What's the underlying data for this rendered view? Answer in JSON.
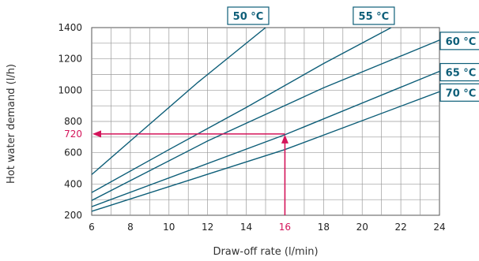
{
  "chart_data": {
    "type": "line",
    "title": "",
    "xlabel": "Draw-off rate (l/min)",
    "ylabel": "Hot water demand (l/h)",
    "xlim": [
      6,
      24
    ],
    "ylim": [
      200,
      1400
    ],
    "x_ticks": [
      "6",
      "8",
      "10",
      "12",
      "14",
      "16",
      "18",
      "20",
      "22",
      "24"
    ],
    "y_ticks": [
      "200",
      "400",
      "600",
      "800",
      "1000",
      "1200",
      "1400"
    ],
    "grid": true,
    "series": [
      {
        "name": "50 °C",
        "points": [
          [
            6,
            460
          ],
          [
            8.7,
            750
          ],
          [
            11.5,
            1050
          ],
          [
            15,
            1400
          ]
        ]
      },
      {
        "name": "55 °C",
        "points": [
          [
            6,
            345
          ],
          [
            10,
            620
          ],
          [
            14,
            890
          ],
          [
            18,
            1170
          ],
          [
            21.5,
            1400
          ]
        ]
      },
      {
        "name": "60 °C",
        "points": [
          [
            6,
            295
          ],
          [
            12,
            675
          ],
          [
            18,
            1015
          ],
          [
            24,
            1320
          ]
        ]
      },
      {
        "name": "65 °C",
        "points": [
          [
            6,
            255
          ],
          [
            16,
            715
          ],
          [
            24,
            1120
          ]
        ]
      },
      {
        "name": "70 °C",
        "points": [
          [
            6,
            225
          ],
          [
            16,
            620
          ],
          [
            24,
            990
          ]
        ]
      }
    ],
    "annotation": {
      "x_value": "16",
      "y_value": "720",
      "x": 16,
      "y": 720
    },
    "colors": {
      "series": "#0d5e78",
      "highlight": "#d4145a",
      "grid": "#9a9a9a",
      "axis": "#555555"
    }
  }
}
